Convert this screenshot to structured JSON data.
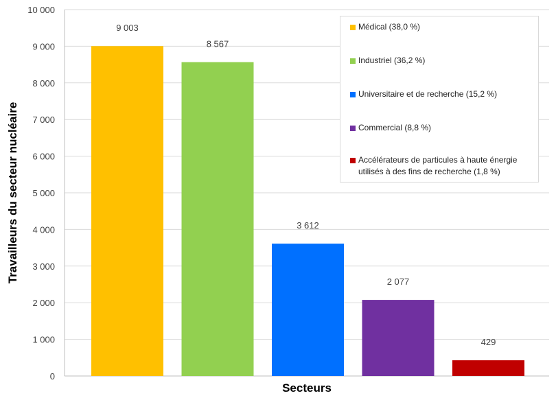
{
  "chart_data": {
    "type": "bar",
    "title": "",
    "xlabel": "Secteurs",
    "ylabel": "Travailleurs du secteur nucléaire",
    "ylim": [
      0,
      10000
    ],
    "yticks": [
      "0",
      "1 000",
      "2 000",
      "3 000",
      "4 000",
      "5 000",
      "6 000",
      "7 000",
      "8 000",
      "9 000",
      "10 000"
    ],
    "grid": true,
    "legend_position": "top-right",
    "categories": [
      "Médical (38,0 %)",
      "Industriel (36,2 %)",
      "Universitaire et de recherche (15,2 %)",
      "Commercial (8,8 %)",
      "Accélérateurs de particules à haute énergie utilisés à des fins de recherche (1,8 %)"
    ],
    "values": [
      9003,
      8567,
      3612,
      2077,
      429
    ],
    "data_labels": [
      "9 003",
      "8 567",
      "3 612",
      "2 077",
      "429"
    ],
    "colors": [
      "#ffc000",
      "#92d050",
      "#0070ff",
      "#7030a0",
      "#c00000"
    ]
  }
}
